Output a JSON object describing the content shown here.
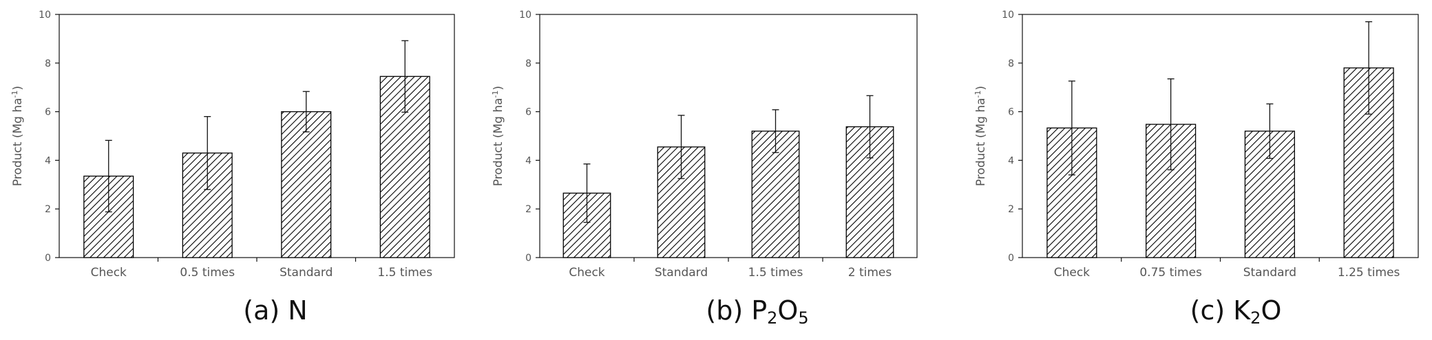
{
  "chart_data": [
    {
      "type": "bar",
      "panel_label": "(a) N",
      "ylabel": "Product (Mg ha",
      "ylabel_sup": "-1",
      "ylabel_tail": ")",
      "ylim": [
        0,
        10
      ],
      "yticks": [
        "0",
        "2",
        "4",
        "6",
        "8",
        "10"
      ],
      "categories": [
        "Check",
        "0.5 times",
        "Standard",
        "1.5 times"
      ],
      "values": [
        3.35,
        4.3,
        6.0,
        7.45
      ],
      "error": [
        1.47,
        1.5,
        0.83,
        1.47
      ],
      "fill": "diagonal-hatch"
    },
    {
      "type": "bar",
      "panel_label": "(b) P2O5",
      "ylabel": "Product (Mg ha",
      "ylabel_sup": "-1",
      "ylabel_tail": ")",
      "ylim": [
        0,
        10
      ],
      "yticks": [
        "0",
        "2",
        "4",
        "6",
        "8",
        "10"
      ],
      "categories": [
        "Check",
        "Standard",
        "1.5 times",
        "2 times"
      ],
      "values": [
        2.65,
        4.55,
        5.2,
        5.38
      ],
      "error": [
        1.2,
        1.3,
        0.88,
        1.28
      ],
      "fill": "diagonal-hatch"
    },
    {
      "type": "bar",
      "panel_label": "(c) K2O",
      "ylabel": "Product (Mg ha",
      "ylabel_sup": "-1",
      "ylabel_tail": ")",
      "ylim": [
        0,
        10
      ],
      "yticks": [
        "0",
        "2",
        "4",
        "6",
        "8",
        "10"
      ],
      "categories": [
        "Check",
        "0.75 times",
        "Standard",
        "1.25 times"
      ],
      "values": [
        5.33,
        5.48,
        5.2,
        7.8
      ],
      "error": [
        1.93,
        1.87,
        1.12,
        1.9
      ],
      "fill": "diagonal-hatch"
    }
  ],
  "titles": {
    "a_prefix": "(a) N",
    "b_prefix": "(b) P",
    "b_sub1": "2",
    "b_mid": "O",
    "b_sub2": "5",
    "c_prefix": "(c) K",
    "c_sub1": "2",
    "c_mid": "O"
  },
  "colors": {
    "axis": "#111111",
    "tick_label": "#555555",
    "bar_stroke": "#000000",
    "hatch": "#000000"
  }
}
